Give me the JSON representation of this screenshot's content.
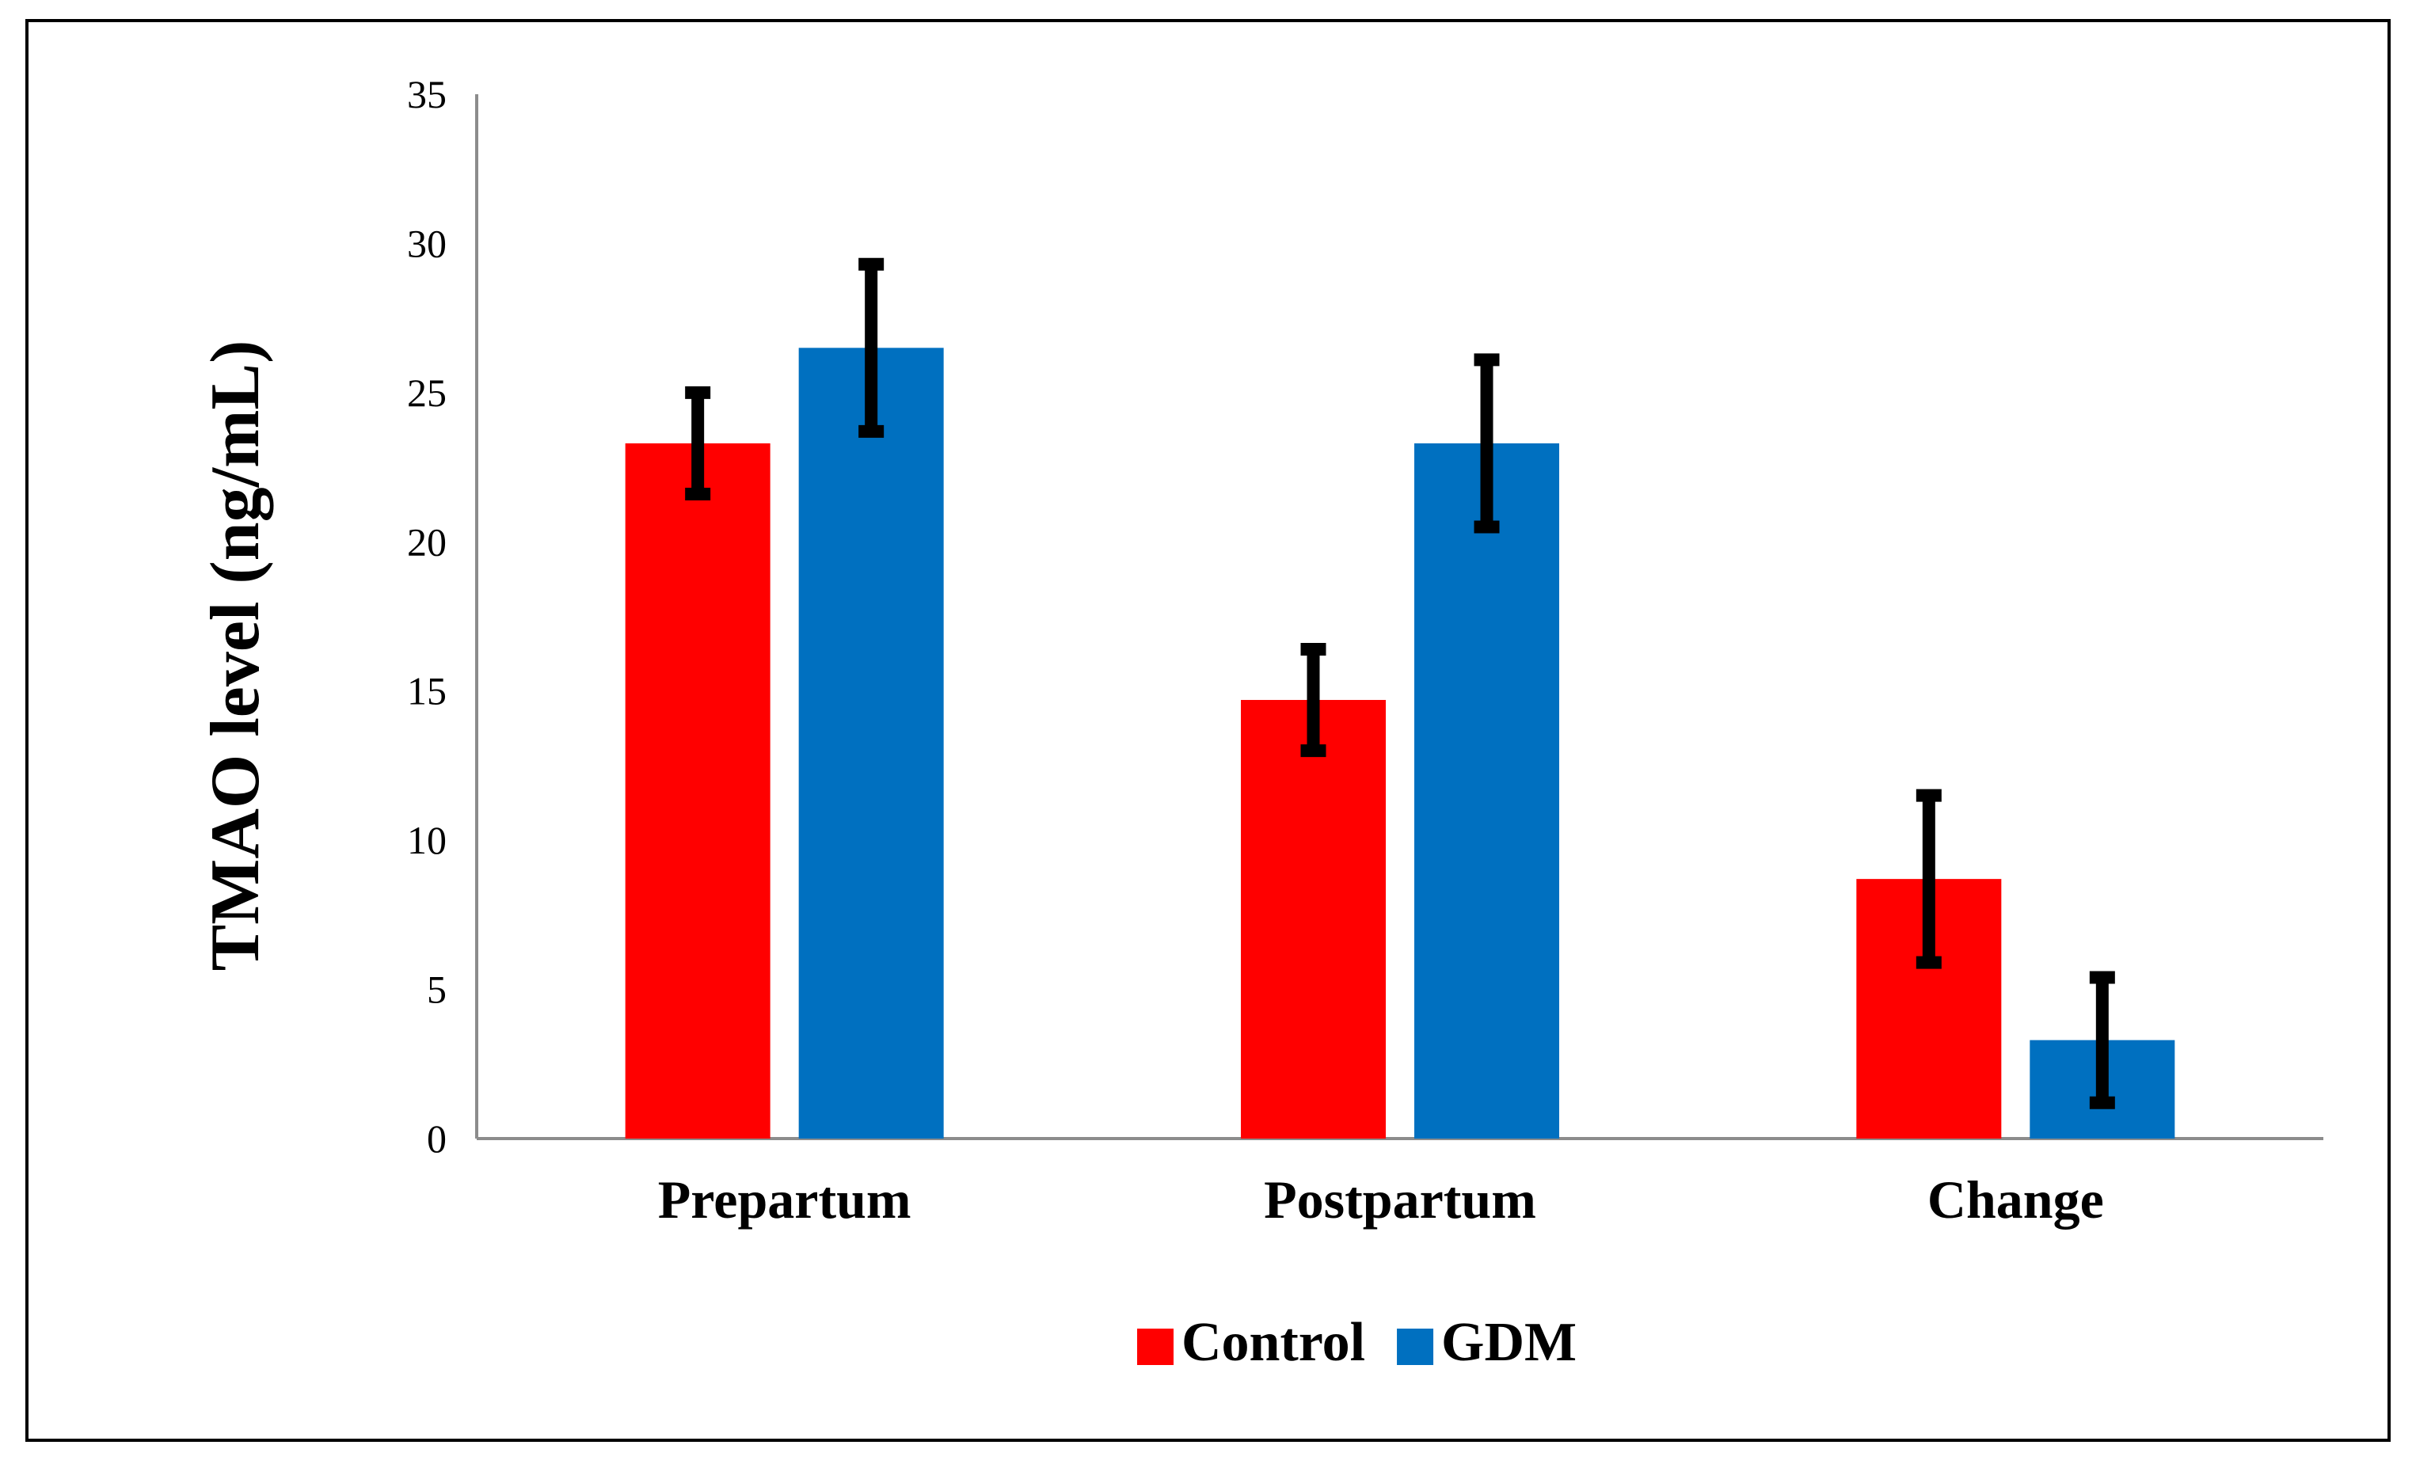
{
  "chart_data": {
    "type": "bar",
    "title": "",
    "xlabel": "",
    "ylabel": "TMAO level (ng/mL)",
    "ylim": [
      0,
      35
    ],
    "yticks": [
      0,
      5,
      10,
      15,
      20,
      25,
      30,
      35
    ],
    "grid": false,
    "legend_position": "bottom-center",
    "categories": [
      "Prepartum",
      "Postpartum",
      "Change"
    ],
    "series": [
      {
        "name": "Control",
        "color": "#FF0000",
        "values": [
          23.3,
          14.7,
          8.7
        ],
        "error": [
          1.7,
          1.7,
          2.8
        ]
      },
      {
        "name": "GDM",
        "color": "#0070C0",
        "values": [
          26.5,
          23.3,
          3.3
        ],
        "error": [
          2.8,
          2.8,
          2.1
        ]
      }
    ]
  }
}
